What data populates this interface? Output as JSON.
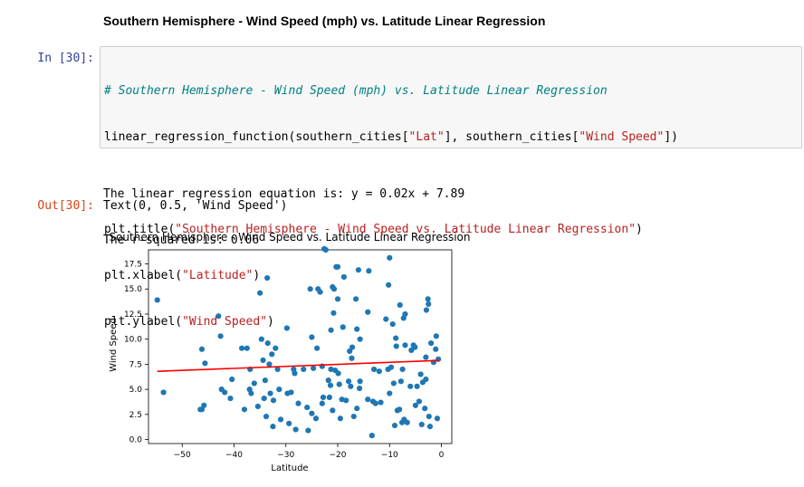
{
  "notebook": {
    "heading": "Southern Hemisphere - Wind Speed (mph) vs. Latitude Linear Regression",
    "in_prompt": "In [30]:",
    "out_prompt": "Out[30]:",
    "code": {
      "comment": "# Southern Hemisphere - Wind Speed (mph) vs. Latitude Linear Regression",
      "call_prefix": "linear_regression_function(southern_cities[",
      "call_arg1": "\"Lat\"",
      "call_mid": "], southern_cities[",
      "call_arg2": "\"Wind Speed\"",
      "call_suffix": "])",
      "title_prefix": "plt.title(",
      "title_arg": "\"Southern Hemisphere - Wind Speed vs. Latitude Linear Regression\"",
      "title_suffix": ")",
      "xlabel_prefix": "plt.xlabel(",
      "xlabel_arg": "\"Latitude\"",
      "xlabel_suffix": ")",
      "ylabel_prefix": "plt.ylabel(",
      "ylabel_arg": "\"Wind Speed\"",
      "ylabel_suffix": ")"
    },
    "stream_lines": [
      "The linear regression equation is: y = 0.02x + 7.89",
      "The r-squared is: 0.06"
    ],
    "result_text": "Text(0, 0.5, 'Wind Speed')"
  },
  "chart_data": {
    "type": "scatter",
    "title": "Southern Hemisphere - Wind Speed vs. Latitude Linear Regression",
    "xlabel": "Latitude",
    "ylabel": "Wind Speed",
    "xlim": [
      -56.5,
      2
    ],
    "ylim": [
      -0.4,
      18.9
    ],
    "xticks": [
      -50,
      -40,
      -30,
      -20,
      -10,
      0
    ],
    "xtick_labels": [
      "−50",
      "−40",
      "−30",
      "−20",
      "−10",
      "0"
    ],
    "yticks": [
      0,
      2.5,
      5,
      7.5,
      10,
      12.5,
      15,
      17.5
    ],
    "ytick_labels": [
      "0.0",
      "2.5",
      "5.0",
      "7.5",
      "10.0",
      "12.5",
      "15.0",
      "17.5"
    ],
    "grid": false,
    "point_color": "#1f77b4",
    "line_color": "#ff0000",
    "regression": {
      "slope": 0.02,
      "intercept": 7.89,
      "x_range": [
        -54.8,
        -0.5
      ]
    },
    "points": [
      [
        -54.8,
        13.9
      ],
      [
        -53.6,
        4.7
      ],
      [
        -46.5,
        3.0
      ],
      [
        -46.2,
        9.0
      ],
      [
        -46.2,
        3.0
      ],
      [
        -45.6,
        7.6
      ],
      [
        -45.8,
        3.4
      ],
      [
        -43.0,
        12.3
      ],
      [
        -42.6,
        10.3
      ],
      [
        -42.4,
        5.0
      ],
      [
        -41.8,
        4.7
      ],
      [
        -40.7,
        4.1
      ],
      [
        -40.4,
        6.0
      ],
      [
        -38.5,
        9.1
      ],
      [
        -38.0,
        3.0
      ],
      [
        -37.5,
        9.1
      ],
      [
        -37.0,
        5.0
      ],
      [
        -36.9,
        7.0
      ],
      [
        -36.7,
        4.6
      ],
      [
        -36.1,
        5.6
      ],
      [
        -35.4,
        3.3
      ],
      [
        -35.0,
        14.6
      ],
      [
        -34.7,
        10.0
      ],
      [
        -34.4,
        7.9
      ],
      [
        -34.2,
        4.1
      ],
      [
        -34.0,
        5.9
      ],
      [
        -33.8,
        2.3
      ],
      [
        -33.6,
        16.1
      ],
      [
        -33.5,
        9.6
      ],
      [
        -33.2,
        7.5
      ],
      [
        -33.0,
        4.6
      ],
      [
        -32.7,
        8.5
      ],
      [
        -32.5,
        1.3
      ],
      [
        -32.4,
        3.9
      ],
      [
        -32.0,
        9.1
      ],
      [
        -31.6,
        7.0
      ],
      [
        -31.3,
        5.0
      ],
      [
        -31.0,
        2.0
      ],
      [
        -29.8,
        11.1
      ],
      [
        -29.7,
        4.6
      ],
      [
        -29.4,
        1.6
      ],
      [
        -29.0,
        4.7
      ],
      [
        -28.5,
        7.0
      ],
      [
        -28.3,
        6.6
      ],
      [
        -28.1,
        1.0
      ],
      [
        -27.6,
        3.6
      ],
      [
        -26.6,
        7.0
      ],
      [
        -25.9,
        3.2
      ],
      [
        -25.7,
        0.9
      ],
      [
        -25.3,
        15.0
      ],
      [
        -25.0,
        2.6
      ],
      [
        -25.0,
        10.2
      ],
      [
        -24.7,
        7.1
      ],
      [
        -24.2,
        2.1
      ],
      [
        -24.0,
        9.1
      ],
      [
        -23.8,
        15.0
      ],
      [
        -23.4,
        14.7
      ],
      [
        -23.0,
        3.6
      ],
      [
        -23.0,
        7.3
      ],
      [
        -22.8,
        4.2
      ],
      [
        -22.6,
        19.0
      ],
      [
        -22.3,
        18.9
      ],
      [
        -21.8,
        5.9
      ],
      [
        -21.6,
        4.2
      ],
      [
        -21.4,
        5.4
      ],
      [
        -21.3,
        7.0
      ],
      [
        -21.3,
        10.9
      ],
      [
        -21.0,
        2.9
      ],
      [
        -21.0,
        15.2
      ],
      [
        -20.8,
        12.6
      ],
      [
        -20.7,
        15.0
      ],
      [
        -20.5,
        6.9
      ],
      [
        -20.3,
        17.2
      ],
      [
        -20.0,
        17.2
      ],
      [
        -20.0,
        14.0
      ],
      [
        -19.9,
        6.6
      ],
      [
        -19.7,
        5.5
      ],
      [
        -19.5,
        2.1
      ],
      [
        -19.2,
        4.0
      ],
      [
        -19.0,
        11.2
      ],
      [
        -18.8,
        16.2
      ],
      [
        -18.4,
        3.9
      ],
      [
        -17.9,
        5.8
      ],
      [
        -17.7,
        8.8
      ],
      [
        -17.5,
        5.3
      ],
      [
        -17.3,
        8.1
      ],
      [
        -17.2,
        9.2
      ],
      [
        -16.9,
        2.3
      ],
      [
        -16.5,
        14.0
      ],
      [
        -16.3,
        3.1
      ],
      [
        -16.3,
        11.0
      ],
      [
        -16.0,
        16.9
      ],
      [
        -15.8,
        5.1
      ],
      [
        -15.7,
        10.0
      ],
      [
        -15.7,
        5.8
      ],
      [
        -14.2,
        4.0
      ],
      [
        -14.2,
        12.7
      ],
      [
        -14.0,
        16.8
      ],
      [
        -13.4,
        0.4
      ],
      [
        -13.2,
        3.8
      ],
      [
        -13.0,
        7.0
      ],
      [
        -12.7,
        3.6
      ],
      [
        -12.0,
        6.8
      ],
      [
        -11.7,
        3.7
      ],
      [
        -10.7,
        12.0
      ],
      [
        -10.3,
        7.0
      ],
      [
        -10.2,
        15.4
      ],
      [
        -10.0,
        18.1
      ],
      [
        -10.0,
        4.6
      ],
      [
        -9.7,
        7.2
      ],
      [
        -9.4,
        11.5
      ],
      [
        -9.2,
        5.6
      ],
      [
        -9.0,
        1.4
      ],
      [
        -8.8,
        10.1
      ],
      [
        -8.7,
        9.3
      ],
      [
        -8.5,
        2.9
      ],
      [
        -8.1,
        3.0
      ],
      [
        -8.0,
        13.4
      ],
      [
        -7.8,
        5.8
      ],
      [
        -7.6,
        1.7
      ],
      [
        -7.5,
        7.0
      ],
      [
        -7.3,
        12.1
      ],
      [
        -7.2,
        2.0
      ],
      [
        -7.0,
        12.5
      ],
      [
        -7.0,
        9.4
      ],
      [
        -6.6,
        1.7
      ],
      [
        -6.0,
        5.3
      ],
      [
        -5.8,
        8.9
      ],
      [
        -5.4,
        9.4
      ],
      [
        -5.1,
        9.2
      ],
      [
        -5.0,
        3.4
      ],
      [
        -4.7,
        5.3
      ],
      [
        -4.3,
        3.8
      ],
      [
        -4.0,
        6.5
      ],
      [
        -3.8,
        1.5
      ],
      [
        -3.6,
        5.7
      ],
      [
        -3.2,
        3.1
      ],
      [
        -3.0,
        8.2
      ],
      [
        -3.0,
        6.0
      ],
      [
        -2.9,
        12.9
      ],
      [
        -2.6,
        14.0
      ],
      [
        -2.5,
        13.5
      ],
      [
        -2.4,
        2.3
      ],
      [
        -2.2,
        1.3
      ],
      [
        -2.0,
        9.6
      ],
      [
        -1.5,
        7.7
      ],
      [
        -1.1,
        9.0
      ],
      [
        -1.0,
        10.3
      ],
      [
        -0.8,
        2.1
      ],
      [
        -0.6,
        8.0
      ]
    ]
  }
}
